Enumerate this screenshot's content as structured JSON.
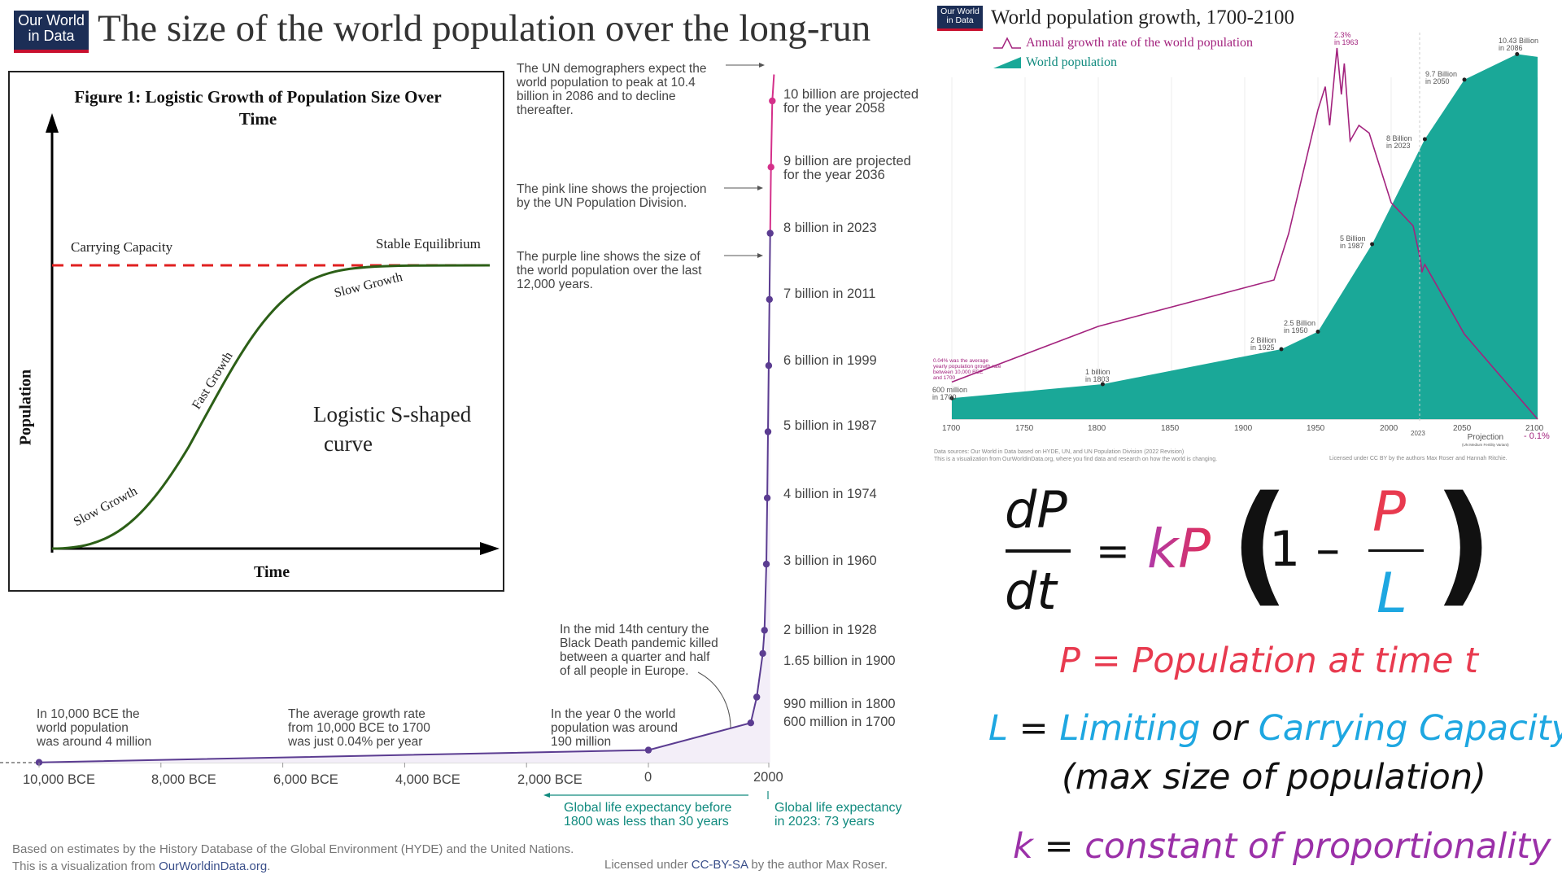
{
  "left": {
    "logo": {
      "line1": "Our World",
      "line2": "in Data"
    },
    "title": "The size of the world population over the long-run",
    "figure": {
      "title_line1": "Figure 1: Logistic Growth of Population Size  Over",
      "title_line2": "Time",
      "y_label": "Population",
      "x_label": "Time",
      "carrying_capacity": "Carrying Capacity",
      "stable_equilibrium": "Stable Equilibrium",
      "slow_growth_top": "Slow Growth",
      "fast_growth": "Fast Growth",
      "slow_growth_bottom": "Slow Growth",
      "curve_label_1": "Logistic S-shaped",
      "curve_label_2": "curve"
    },
    "annotations": {
      "un_peak": [
        "The UN demographers expect the",
        "world population to peak at 10.4",
        "billion in 2086 and to decline",
        "thereafter."
      ],
      "pink_line": [
        "The pink line shows the projection",
        "by the UN Population Division."
      ],
      "purple_line": [
        "The purple line shows the size of",
        "the world population over the last",
        "12,000 years."
      ],
      "black_death": [
        "In the mid 14th century the",
        "Black Death pandemic killed",
        "between a quarter and half",
        "of all people in Europe."
      ],
      "bce10000": [
        "In 10,000 BCE the",
        "world population",
        "was around 4 million"
      ],
      "avg_growth": [
        "The average growth rate",
        "from 10,000 BCE to 1700",
        "was just 0.04% per year"
      ],
      "year0": [
        "In the year 0 the world",
        "population was around",
        "190 million"
      ]
    },
    "milestones": [
      "10 billion are projected\nfor the year 2058",
      "9 billion are projected\nfor the year 2036",
      "8 billion in 2023",
      "7 billion in 2011",
      "6 billion in 1999",
      "5 billion in 1987",
      "4 billion in 1974",
      "3 billion in 1960",
      "2 billion in 1928",
      "1.65 billion in 1900",
      "990 million in 1800",
      "600 million in 1700"
    ],
    "x_ticks": [
      "10,000 BCE",
      "8,000 BCE",
      "6,000 BCE",
      "4,000 BCE",
      "2,000 BCE",
      "0",
      "2000"
    ],
    "life_before": [
      "Global life expectancy before",
      "1800 was less than 30 years"
    ],
    "life_2023": [
      "Global life expectancy",
      "in 2023: 73 years"
    ],
    "footer_line1": "Based on estimates by the History Database of the Global Environment (HYDE) and the United Nations.",
    "footer_line2_prefix": "This is a visualization from ",
    "footer_line2_link": "OurWorldinData.org",
    "footer_line2_suffix": ".",
    "license_prefix": "Licensed under ",
    "license_link": "CC-BY-SA",
    "license_suffix": " by the author Max Roser."
  },
  "right": {
    "logo": {
      "line1": "Our World",
      "line2": "in Data"
    },
    "title": "World population growth, 1700-2100",
    "legend_rate": "Annual growth rate of the world population",
    "legend_pop": "World population",
    "peak_rate": "2.3%",
    "peak_rate_year": "in 1963",
    "end_rate": "- 0.1%",
    "start_note": [
      "0.04% was the average",
      "yearly population growth rate",
      "between 10,000 BCE",
      "and 1700"
    ],
    "projection": "Projection",
    "projection_sub": "(UN Medium Fertility Variant)",
    "year_2023": "2023",
    "x_ticks": [
      "1700",
      "1750",
      "1800",
      "1850",
      "1900",
      "1950",
      "2000",
      "2050",
      "2100"
    ],
    "pop_labels": [
      {
        "t": "600 million",
        "s": "in 1700"
      },
      {
        "t": "1 billion",
        "s": "in 1803"
      },
      {
        "t": "2 Billion",
        "s": "in 1925"
      },
      {
        "t": "2.5 Billion",
        "s": "in 1950"
      },
      {
        "t": "5 Billion",
        "s": "in 1987"
      },
      {
        "t": "8 Billion",
        "s": "in 2023"
      },
      {
        "t": "9.7 Billion",
        "s": "in 2050"
      },
      {
        "t": "10.43 Billion",
        "s": "in 2086"
      }
    ],
    "sources": "Data sources: Our World in Data based on HYDE, UN, and UN Population Division (2022 Revision)",
    "viz": "This is a visualization from OurWorldinData.org, where you find data and research on how the world is changing.",
    "license": "Licensed under CC BY by the authors Max Roser and Hannah Ritchie.",
    "colors": {
      "pop": "#1aa898",
      "rate": "#a3237e"
    }
  },
  "equation": {
    "dP": "dP",
    "dt": "dt",
    "equals": "=",
    "kP": "kP",
    "one_minus": "1 –",
    "P": "P",
    "L": "L",
    "def_P_sym": "P",
    "def_P_text": "Population at time t",
    "def_L_sym": "L",
    "def_L_text1": "Limiting",
    "def_L_or": "or",
    "def_L_text2": "Carrying Capacity",
    "def_L_paren": "(max size of population)",
    "def_k_sym": "k",
    "def_k_text": "constant of proportionality",
    "colors": {
      "P": "#e83a4f",
      "L": "#1ea7e1",
      "k": "#9b30a8"
    }
  },
  "chart_data": [
    {
      "type": "line",
      "title": "Figure 1: Logistic Growth of Population Size Over Time",
      "xlabel": "Time",
      "ylabel": "Population",
      "series": [
        {
          "name": "Logistic S-shaped curve"
        }
      ]
    },
    {
      "type": "line",
      "title": "The size of the world population over the long-run",
      "x": [
        -10000,
        0,
        1700,
        1800,
        1900,
        1928,
        1960,
        1974,
        1987,
        1999,
        2011,
        2023,
        2036,
        2058,
        2086
      ],
      "series": [
        {
          "name": "World population (billions)",
          "values": [
            0.004,
            0.19,
            0.6,
            0.99,
            1.65,
            2,
            3,
            4,
            5,
            6,
            7,
            8,
            9,
            10,
            10.4
          ]
        }
      ],
      "xlim": [
        -10000,
        2100
      ]
    },
    {
      "type": "area",
      "title": "World population growth, 1700-2100",
      "x": [
        1700,
        1803,
        1925,
        1950,
        1987,
        2023,
        2050,
        2086,
        2100
      ],
      "series": [
        {
          "name": "World population (billions)",
          "values": [
            0.6,
            1,
            2,
            2.5,
            5,
            8,
            9.7,
            10.43,
            10.35
          ]
        },
        {
          "name": "Annual growth rate (%)",
          "values": [
            0.04,
            null,
            null,
            null,
            null,
            null,
            null,
            null,
            -0.1
          ]
        }
      ],
      "peak_rate": {
        "year": 1963,
        "value": 2.3
      },
      "xlim": [
        1700,
        2100
      ]
    }
  ]
}
